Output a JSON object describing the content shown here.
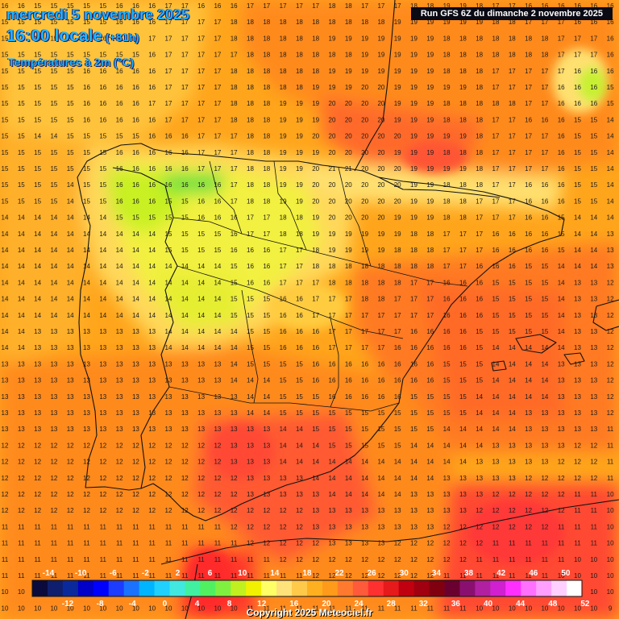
{
  "header": {
    "date": "mercredi 5 novembre 2025",
    "hour": "16:00 locale",
    "offset": "(+81h)",
    "parameter": "Températures à 2m (°C)",
    "run": "Run GFS 6Z du dimanche 2 novembre 2025"
  },
  "footer": {
    "credit": "Copyright 2025 Meteociel.fr"
  },
  "colorbar": {
    "top_labels": [
      "-14",
      "-10",
      "-6",
      "-2",
      "2",
      "6",
      "10",
      "14",
      "18",
      "22",
      "26",
      "30",
      "34",
      "38",
      "42",
      "46",
      "50"
    ],
    "bottom_labels": [
      "-12",
      "-8",
      "-4",
      "0",
      "4",
      "8",
      "12",
      "16",
      "20",
      "24",
      "28",
      "32",
      "36",
      "40",
      "44",
      "48",
      "52"
    ],
    "colors": [
      "#0a0a3c",
      "#0f1f6e",
      "#0a2a9c",
      "#0000c8",
      "#0000ff",
      "#1c3cff",
      "#1a72ff",
      "#00b4ff",
      "#20d0ff",
      "#40e8e0",
      "#40f0a0",
      "#50f060",
      "#80f040",
      "#c0f020",
      "#f0f000",
      "#ffff66",
      "#ffe27a",
      "#ffc94a",
      "#ffb020",
      "#ff9a1a",
      "#ff7a2e",
      "#ff5a3a",
      "#ff3030",
      "#e61a1a",
      "#c00010",
      "#a00010",
      "#800010",
      "#6a0030",
      "#8a1070",
      "#b020a0",
      "#d020d0",
      "#ff30ff",
      "#ff70ff",
      "#ffa0ff",
      "#ffd0ff",
      "#ffffff"
    ]
  },
  "grid_values": [
    "1615151516161716161717171817171819181716161616",
    "1515151516161717181818181818191919191817171616",
    "1515161616171717181818181919191918181818171716",
    "1515151515161717171818181819191918181818171716",
    "1515151616161717181818181919191918181717171616",
    "1515151616161717181818191920191919181717161615",
    "1515151616171717181819192020191918181817161615",
    "1515151616161717181819192020191918181716161514",
    "1514151515161617171819202020201919181717161514",
    "1515151516161617171819192020191918181717161514",
    "1515151516161617171819202120201919181717161514",
    "1515141516161616171819202020201918181716161514",
    "1515141516161516171819202020201918171716161514",
    "1414141415151516161718192020191918171716151414",
    "1414141414141515161718191919191817171616151413",
    "1414141414141515161617181919181817171616151413",
    "1414141414141414151617181818181817161615141413",
    "1414141414141414151617171818181716161515141312",
    "1414141414141414151516171718171716161515141312",
    "1414141414141414151516171717171716161515141312",
    "1413131313131414141516161717171616151515141312",
    "1413131313131414141516161717161616151414141312",
    "1313131313131313141515161616161615151414131312",
    "1313131313131313141415161616161615151414131312",
    "1313131313131313131415151616161515141414131312",
    "1313131313131313131415151515151515141413131312",
    "1313131313131313131314151515151514141413131311",
    "1212121212121212131314141515151414141313131211",
    "1212121212121212131314141414141414131313121211",
    "1212121212121212121313141414141413131312121211",
    "1212121212121212121313131414141313131212121110",
    "1212121212121212121212131313131313121212121110",
    "1111111111111111121212131313131312121212111110",
    "1111111111111111111212121313121212121111111110",
    "1111111111111111111112121212121212111111111010",
    "1111111111111111111111121212121211111111101010",
    "1010101010101010111111111212121111111110101010",
    "1010101010101010101111111111111111101010101009",
    "1010101010101010101010111111111010101010100909"
  ]
}
